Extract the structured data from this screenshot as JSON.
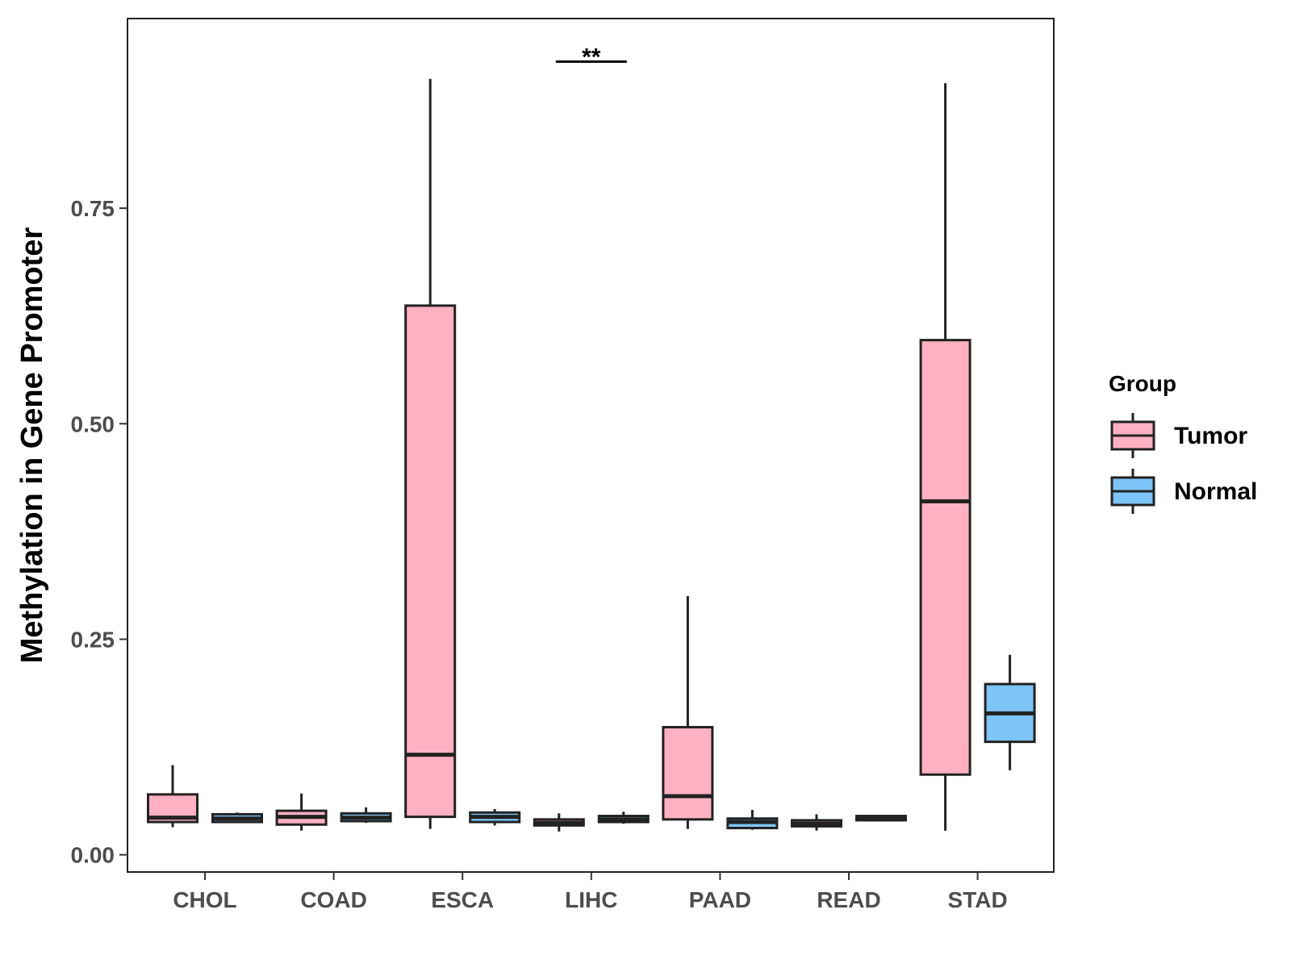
{
  "chart_data": {
    "type": "boxplot",
    "title": "",
    "xlabel": "",
    "ylabel": "Methylation in Gene Promoter",
    "ylim": [
      -0.02,
      0.97
    ],
    "yticks": [
      0.0,
      0.25,
      0.5,
      0.75
    ],
    "ytick_labels": [
      "0.00",
      "0.25",
      "0.50",
      "0.75"
    ],
    "categories": [
      "CHOL",
      "COAD",
      "ESCA",
      "LIHC",
      "PAAD",
      "READ",
      "STAD"
    ],
    "legend": {
      "title": "Group",
      "position": "right",
      "entries": [
        {
          "name": "Tumor",
          "color": "#FFB1C3"
        },
        {
          "name": "Normal",
          "color": "#7DC4F8"
        }
      ]
    },
    "series": [
      {
        "name": "Tumor",
        "color": "#FFB1C3",
        "boxes": [
          {
            "category": "CHOL",
            "min": 0.032,
            "q1": 0.038,
            "median": 0.043,
            "q3": 0.07,
            "max": 0.104
          },
          {
            "category": "COAD",
            "min": 0.028,
            "q1": 0.035,
            "median": 0.044,
            "q3": 0.051,
            "max": 0.071
          },
          {
            "category": "ESCA",
            "min": 0.03,
            "q1": 0.044,
            "median": 0.116,
            "q3": 0.637,
            "max": 0.9
          },
          {
            "category": "LIHC",
            "min": 0.027,
            "q1": 0.034,
            "median": 0.037,
            "q3": 0.041,
            "max": 0.048
          },
          {
            "category": "PAAD",
            "min": 0.03,
            "q1": 0.041,
            "median": 0.068,
            "q3": 0.148,
            "max": 0.3
          },
          {
            "category": "READ",
            "min": 0.028,
            "q1": 0.033,
            "median": 0.036,
            "q3": 0.04,
            "max": 0.047
          },
          {
            "category": "STAD",
            "min": 0.028,
            "q1": 0.093,
            "median": 0.41,
            "q3": 0.597,
            "max": 0.895
          }
        ]
      },
      {
        "name": "Normal",
        "color": "#7DC4F8",
        "boxes": [
          {
            "category": "CHOL",
            "min": 0.037,
            "q1": 0.038,
            "median": 0.042,
            "q3": 0.047,
            "max": 0.049
          },
          {
            "category": "COAD",
            "min": 0.037,
            "q1": 0.039,
            "median": 0.043,
            "q3": 0.048,
            "max": 0.055
          },
          {
            "category": "ESCA",
            "min": 0.034,
            "q1": 0.038,
            "median": 0.044,
            "q3": 0.049,
            "max": 0.053
          },
          {
            "category": "LIHC",
            "min": 0.036,
            "q1": 0.038,
            "median": 0.041,
            "q3": 0.045,
            "max": 0.05
          },
          {
            "category": "PAAD",
            "min": 0.029,
            "q1": 0.031,
            "median": 0.038,
            "q3": 0.042,
            "max": 0.052
          },
          {
            "category": "READ",
            "min": 0.039,
            "q1": 0.04,
            "median": 0.042,
            "q3": 0.045,
            "max": 0.046
          },
          {
            "category": "STAD",
            "min": 0.098,
            "q1": 0.131,
            "median": 0.164,
            "q3": 0.198,
            "max": 0.232
          }
        ]
      }
    ],
    "annotations": [
      {
        "category": "LIHC",
        "label": "**",
        "y": 0.92
      }
    ]
  }
}
